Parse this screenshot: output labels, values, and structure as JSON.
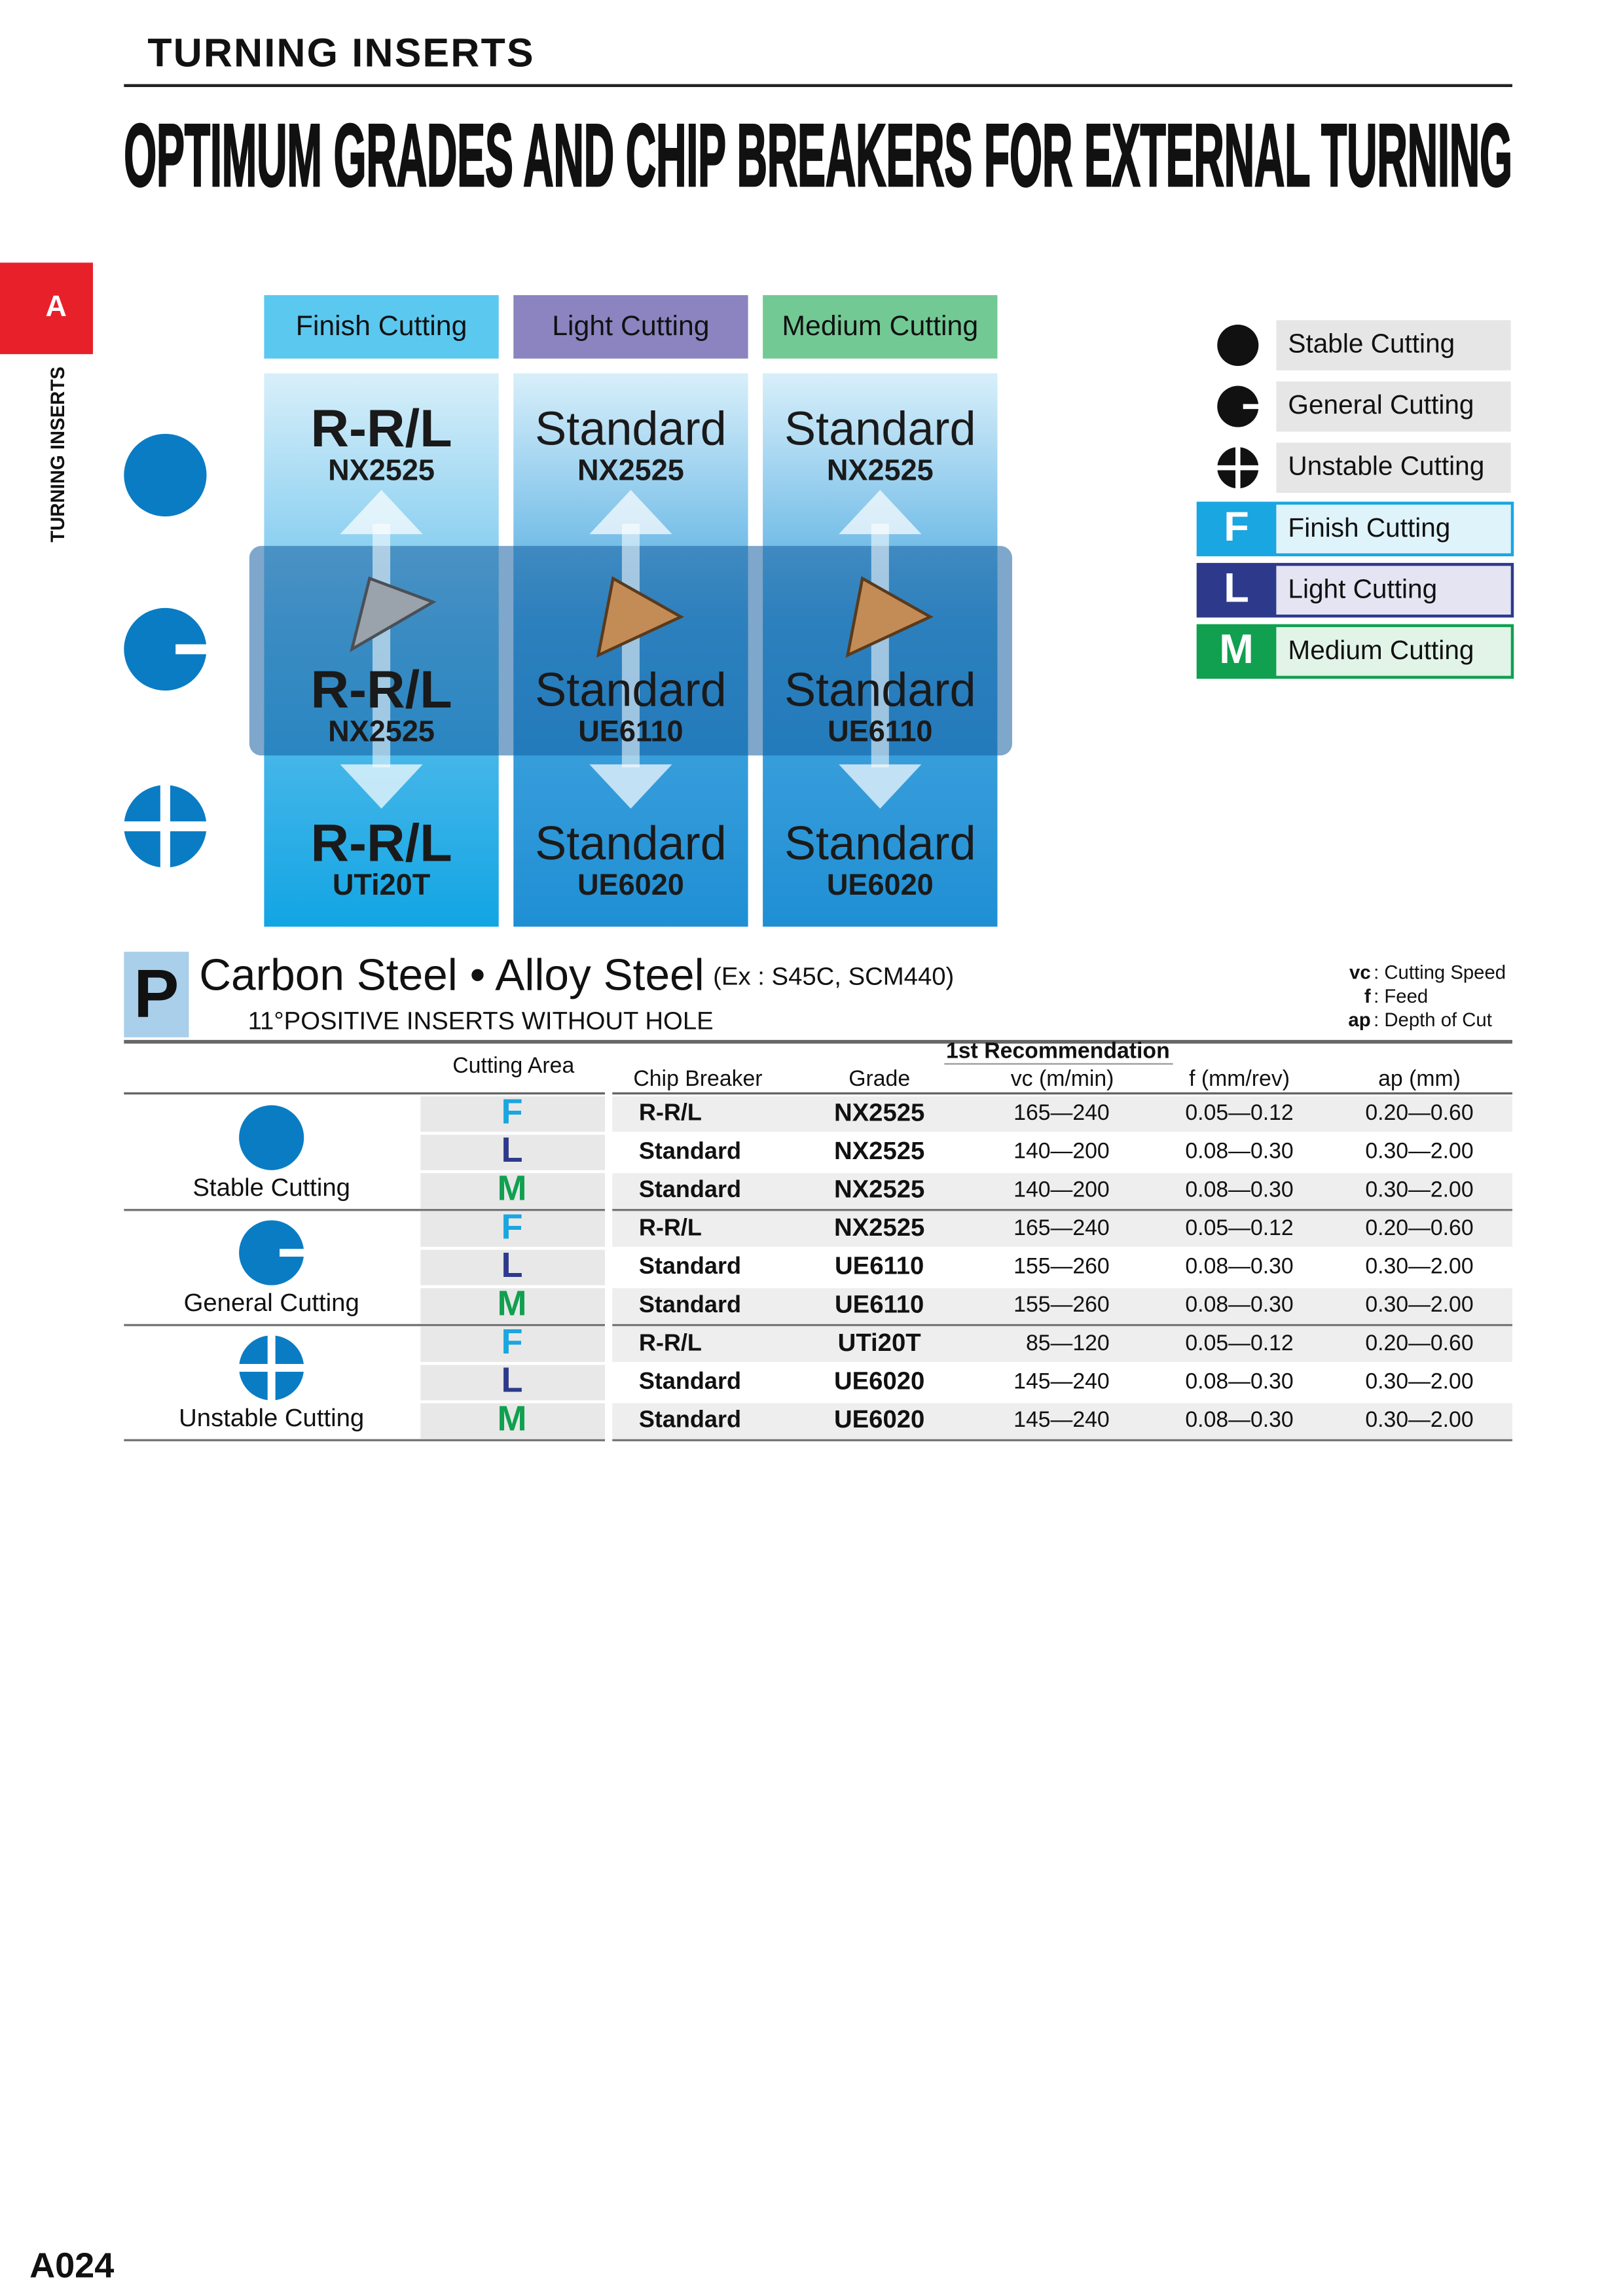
{
  "header": {
    "section": "TURNING INSERTS",
    "title": "OPTIMUM GRADES AND CHIP BREAKERS FOR EXTERNAL TURNING"
  },
  "side_tab": {
    "letter": "A",
    "label": "TURNING INSERTS"
  },
  "diagram": {
    "columns": [
      "Finish Cutting",
      "Light Cutting",
      "Medium Cutting"
    ],
    "rows": [
      [
        {
          "breaker": "R-R/L",
          "grade": "NX2525"
        },
        {
          "breaker": "Standard",
          "grade": "NX2525"
        },
        {
          "breaker": "Standard",
          "grade": "NX2525"
        }
      ],
      [
        {
          "breaker": "R-R/L",
          "grade": "NX2525"
        },
        {
          "breaker": "Standard",
          "grade": "UE6110"
        },
        {
          "breaker": "Standard",
          "grade": "UE6110"
        }
      ],
      [
        {
          "breaker": "R-R/L",
          "grade": "UTi20T"
        },
        {
          "breaker": "Standard",
          "grade": "UE6020"
        },
        {
          "breaker": "Standard",
          "grade": "UE6020"
        }
      ]
    ]
  },
  "legend": {
    "conditions": [
      "Stable Cutting",
      "General Cutting",
      "Unstable Cutting"
    ],
    "areas": [
      {
        "letter": "F",
        "label": "Finish Cutting"
      },
      {
        "letter": "L",
        "label": "Light Cutting"
      },
      {
        "letter": "M",
        "label": "Medium Cutting"
      }
    ]
  },
  "table": {
    "material_letter": "P",
    "material": "Carbon Steel • Alloy Steel",
    "example": "(Ex : S45C, SCM440)",
    "subtitle": "11°POSITIVE INSERTS WITHOUT HOLE",
    "notes": [
      {
        "abbr": "vc",
        "text": ": Cutting Speed"
      },
      {
        "abbr": "f",
        "text": ": Feed"
      },
      {
        "abbr": "ap",
        "text": ": Depth of Cut"
      }
    ],
    "cutting_area": "Cutting Area",
    "recommendation": "1st Recommendation",
    "columns": [
      "Chip Breaker",
      "Grade",
      "vc (m/min)",
      "f (mm/rev)",
      "ap (mm)"
    ],
    "groups": [
      {
        "condition": "Stable Cutting",
        "rows": [
          [
            "F",
            "R-R/L",
            "NX2525",
            "165—240",
            "0.05—0.12",
            "0.20—0.60"
          ],
          [
            "L",
            "Standard",
            "NX2525",
            "140—200",
            "0.08—0.30",
            "0.30—2.00"
          ],
          [
            "M",
            "Standard",
            "NX2525",
            "140—200",
            "0.08—0.30",
            "0.30—2.00"
          ]
        ]
      },
      {
        "condition": "General Cutting",
        "rows": [
          [
            "F",
            "R-R/L",
            "NX2525",
            "165—240",
            "0.05—0.12",
            "0.20—0.60"
          ],
          [
            "L",
            "Standard",
            "UE6110",
            "155—260",
            "0.08—0.30",
            "0.30—2.00"
          ],
          [
            "M",
            "Standard",
            "UE6110",
            "155—260",
            "0.08—0.30",
            "0.30—2.00"
          ]
        ]
      },
      {
        "condition": "Unstable Cutting",
        "rows": [
          [
            "F",
            "R-R/L",
            "UTi20T",
            "85—120",
            "0.05—0.12",
            "0.20—0.60"
          ],
          [
            "L",
            "Standard",
            "UE6020",
            "145—240",
            "0.08—0.30",
            "0.30—2.00"
          ],
          [
            "M",
            "Standard",
            "UE6020",
            "145—240",
            "0.08—0.30",
            "0.30—2.00"
          ]
        ]
      }
    ]
  },
  "footer": {
    "page": "A024"
  }
}
